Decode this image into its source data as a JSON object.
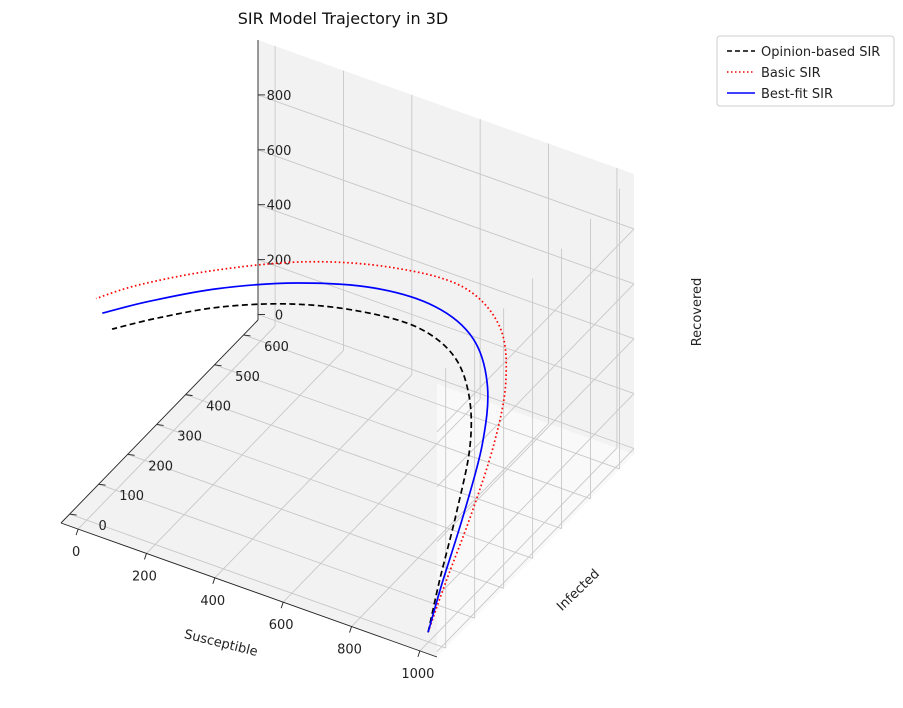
{
  "chart_data": {
    "type": "line",
    "projection": "3d",
    "title": "SIR Model Trajectory in 3D",
    "xlabel": "Susceptible",
    "ylabel": "Infected",
    "zlabel": "Recovered",
    "xlim": [
      -50,
      1050
    ],
    "ylim": [
      -30,
      650
    ],
    "zlim": [
      -20,
      1000
    ],
    "xticks": [
      "0",
      "200",
      "400",
      "600",
      "800",
      "1000"
    ],
    "yticks": [
      "0",
      "100",
      "200",
      "300",
      "400",
      "500",
      "600"
    ],
    "zticks": [
      "0",
      "200",
      "400",
      "600",
      "800"
    ],
    "grid": true,
    "legend_position": "outside-top-right",
    "series": [
      {
        "name": "Opinion-based SIR",
        "color": "#000000",
        "style": "dashed",
        "points": [
          {
            "s": 990,
            "i": 10,
            "r": 0
          },
          {
            "s": 930,
            "i": 120,
            "r": 40
          },
          {
            "s": 860,
            "i": 260,
            "r": 100
          },
          {
            "s": 790,
            "i": 390,
            "r": 170
          },
          {
            "s": 720,
            "i": 470,
            "r": 240
          },
          {
            "s": 640,
            "i": 510,
            "r": 310
          },
          {
            "s": 540,
            "i": 500,
            "r": 380
          },
          {
            "s": 420,
            "i": 440,
            "r": 450
          },
          {
            "s": 300,
            "i": 350,
            "r": 520
          },
          {
            "s": 190,
            "i": 240,
            "r": 580
          },
          {
            "s": 100,
            "i": 130,
            "r": 620
          },
          {
            "s": 40,
            "i": 40,
            "r": 650
          }
        ]
      },
      {
        "name": "Basic SIR",
        "color": "#ff0000",
        "style": "dotted",
        "points": [
          {
            "s": 990,
            "i": 10,
            "r": 0
          },
          {
            "s": 940,
            "i": 130,
            "r": 30
          },
          {
            "s": 880,
            "i": 290,
            "r": 80
          },
          {
            "s": 820,
            "i": 440,
            "r": 150
          },
          {
            "s": 760,
            "i": 550,
            "r": 230
          },
          {
            "s": 690,
            "i": 610,
            "r": 330
          },
          {
            "s": 590,
            "i": 600,
            "r": 440
          },
          {
            "s": 460,
            "i": 510,
            "r": 550
          },
          {
            "s": 320,
            "i": 380,
            "r": 650
          },
          {
            "s": 180,
            "i": 230,
            "r": 720
          },
          {
            "s": 70,
            "i": 100,
            "r": 760
          },
          {
            "s": 10,
            "i": 20,
            "r": 770
          }
        ]
      },
      {
        "name": "Best-fit SIR",
        "color": "#0000ff",
        "style": "solid",
        "points": [
          {
            "s": 990,
            "i": 10,
            "r": 0
          },
          {
            "s": 935,
            "i": 125,
            "r": 35
          },
          {
            "s": 870,
            "i": 275,
            "r": 90
          },
          {
            "s": 805,
            "i": 415,
            "r": 160
          },
          {
            "s": 740,
            "i": 510,
            "r": 240
          },
          {
            "s": 660,
            "i": 555,
            "r": 330
          },
          {
            "s": 560,
            "i": 540,
            "r": 420
          },
          {
            "s": 440,
            "i": 470,
            "r": 510
          },
          {
            "s": 310,
            "i": 360,
            "r": 590
          },
          {
            "s": 185,
            "i": 235,
            "r": 650
          },
          {
            "s": 85,
            "i": 115,
            "r": 690
          },
          {
            "s": 20,
            "i": 30,
            "r": 710
          }
        ]
      }
    ]
  }
}
